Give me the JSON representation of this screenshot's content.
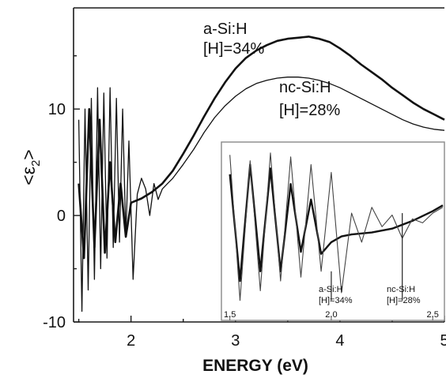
{
  "chart_data": [
    {
      "type": "line",
      "title": "",
      "xlabel": "ENERGY (eV)",
      "ylabel_base": "<ε",
      "ylabel_sub": "2",
      "ylabel_end": ">",
      "xlim": [
        1.45,
        5.0
      ],
      "ylim": [
        -10,
        19.5
      ],
      "xticks": [
        2,
        3,
        4,
        5
      ],
      "yticks": [
        -10,
        0,
        10
      ],
      "grid": false,
      "series": [
        {
          "name": "a-Si:H [H]=34%",
          "color": "#111111",
          "stroke_weight": "thick",
          "x": [
            1.5,
            1.55,
            1.6,
            1.65,
            1.7,
            1.75,
            1.8,
            1.85,
            1.9,
            1.95,
            2.0,
            2.1,
            2.2,
            2.3,
            2.4,
            2.5,
            2.6,
            2.7,
            2.8,
            2.9,
            3.0,
            3.1,
            3.2,
            3.3,
            3.4,
            3.5,
            3.6,
            3.7,
            3.75,
            3.8,
            3.9,
            4.0,
            4.1,
            4.2,
            4.3,
            4.4,
            4.5,
            4.6,
            4.7,
            4.8,
            4.9,
            5.0
          ],
          "y": [
            3.0,
            -4.0,
            10.0,
            -3.0,
            9.0,
            -3.5,
            5.0,
            -2.5,
            3.0,
            -2.0,
            1.2,
            1.6,
            2.2,
            3.0,
            4.2,
            5.8,
            7.5,
            9.3,
            11.0,
            12.5,
            13.8,
            14.8,
            15.5,
            16.0,
            16.4,
            16.6,
            16.7,
            16.8,
            16.7,
            16.6,
            16.3,
            15.7,
            15.0,
            14.2,
            13.5,
            12.8,
            12.0,
            11.3,
            10.6,
            10.0,
            9.5,
            9.0
          ]
        },
        {
          "name": "nc-Si:H [H]=28%",
          "color": "#111111",
          "stroke_weight": "thin",
          "x": [
            1.5,
            1.53,
            1.56,
            1.59,
            1.62,
            1.65,
            1.68,
            1.71,
            1.74,
            1.77,
            1.8,
            1.83,
            1.86,
            1.89,
            1.92,
            1.95,
            1.98,
            2.02,
            2.06,
            2.1,
            2.14,
            2.18,
            2.22,
            2.26,
            2.3,
            2.35,
            2.4,
            2.5,
            2.6,
            2.7,
            2.8,
            2.9,
            3.0,
            3.1,
            3.2,
            3.3,
            3.4,
            3.5,
            3.6,
            3.7,
            3.8,
            3.9,
            4.0,
            4.1,
            4.2,
            4.3,
            4.4,
            4.5,
            4.6,
            4.7,
            4.8,
            4.9,
            5.0
          ],
          "y": [
            9.0,
            -9.0,
            10.0,
            -7.0,
            11.0,
            -6.0,
            12.0,
            -5.0,
            11.5,
            -4.0,
            12.0,
            -3.0,
            11.0,
            -2.5,
            10.0,
            -2.0,
            7.0,
            -6.0,
            2.0,
            3.5,
            2.5,
            0.0,
            3.0,
            1.5,
            2.5,
            3.0,
            3.5,
            4.8,
            6.2,
            7.8,
            9.2,
            10.3,
            11.2,
            11.9,
            12.4,
            12.7,
            12.9,
            13.0,
            13.0,
            12.9,
            12.7,
            12.4,
            12.0,
            11.5,
            11.0,
            10.5,
            10.0,
            9.5,
            9.0,
            8.6,
            8.3,
            8.1,
            8.0
          ]
        }
      ],
      "annotations": [
        {
          "line1": "a-Si:H",
          "line2": "[H]=34%"
        },
        {
          "line1": "nc-Si:H",
          "line2": "[H]=28%"
        }
      ]
    },
    {
      "type": "line",
      "title": "",
      "xlim": [
        1.47,
        2.55
      ],
      "ylim": [
        -4.5,
        4.0
      ],
      "xticks": [
        1.5,
        2.0,
        2.5
      ],
      "xtick_labels": [
        "1.5",
        "2.0",
        "2.5"
      ],
      "series": [
        {
          "name": "a-Si:H [H]=34%",
          "color": "#111111",
          "stroke_weight": "thick",
          "x": [
            1.5,
            1.55,
            1.6,
            1.65,
            1.7,
            1.75,
            1.8,
            1.85,
            1.9,
            1.95,
            2.0,
            2.05,
            2.1,
            2.2,
            2.3,
            2.4,
            2.5,
            2.55
          ],
          "y": [
            2.5,
            -3.0,
            3.0,
            -2.5,
            2.8,
            -2.5,
            2.0,
            -1.5,
            1.2,
            -1.6,
            -1.0,
            -0.7,
            -0.6,
            -0.5,
            -0.3,
            0.1,
            0.6,
            0.9
          ]
        },
        {
          "name": "nc-Si:H [H]=28%",
          "color": "#444444",
          "stroke_weight": "thin",
          "x": [
            1.5,
            1.55,
            1.6,
            1.65,
            1.7,
            1.75,
            1.8,
            1.85,
            1.9,
            1.95,
            2.0,
            2.05,
            2.1,
            2.15,
            2.2,
            2.25,
            2.3,
            2.35,
            2.4,
            2.45,
            2.5,
            2.55
          ],
          "y": [
            3.5,
            -4.0,
            3.2,
            -3.5,
            3.6,
            -3.0,
            3.4,
            -2.8,
            3.0,
            -2.5,
            2.6,
            -3.6,
            0.5,
            -1.0,
            0.8,
            -0.2,
            0.4,
            -0.8,
            0.2,
            0.0,
            0.5,
            0.8
          ]
        }
      ],
      "markers": [
        {
          "x": 2.0,
          "y_from": -2.5,
          "y_to": -4.0,
          "line1": "a-Si:H",
          "line2": "[H]=34%"
        },
        {
          "x": 2.35,
          "y_from": 0.5,
          "y_to": -4.0,
          "line1": "nc-Si:H",
          "line2": "[H]=28%"
        }
      ]
    }
  ]
}
